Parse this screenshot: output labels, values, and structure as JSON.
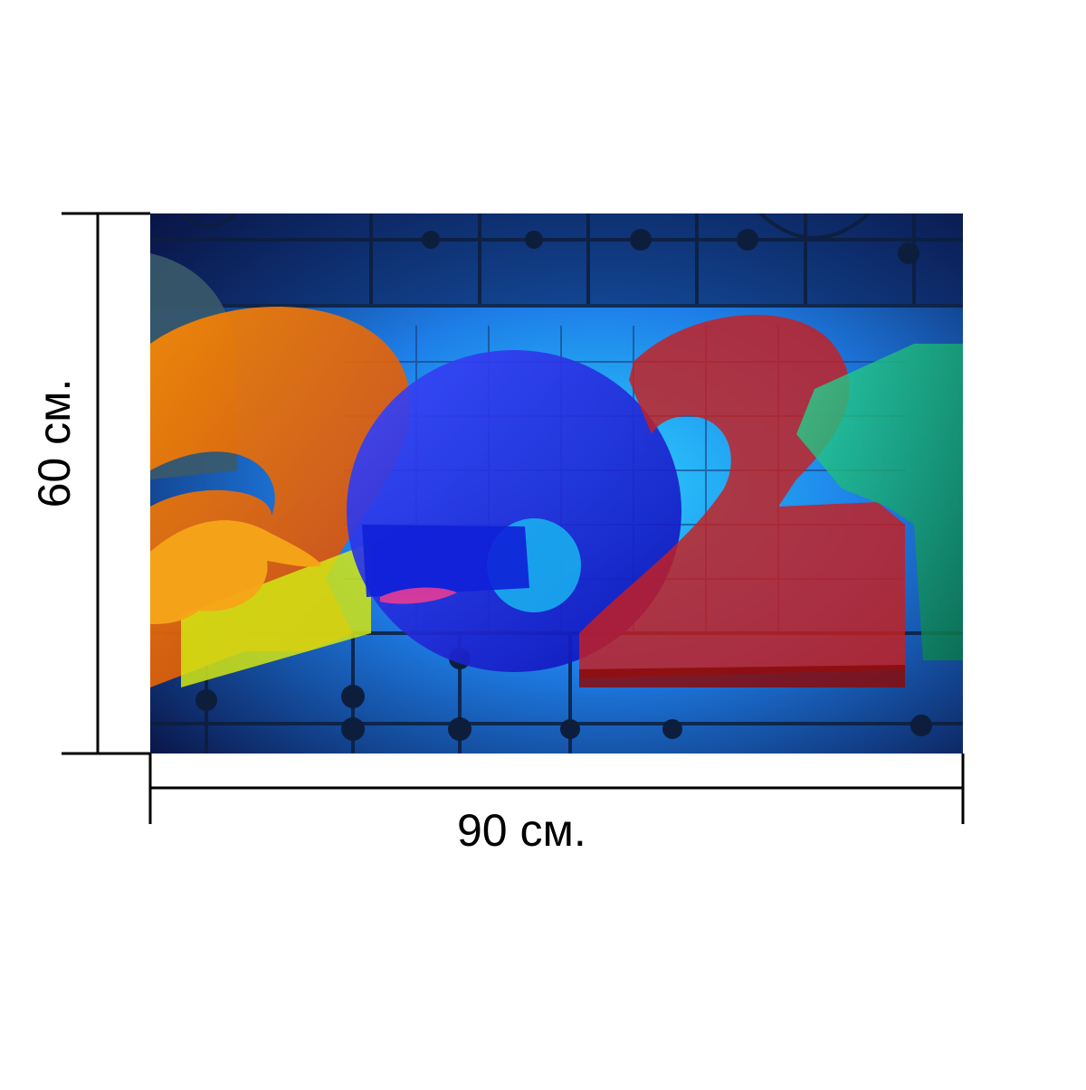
{
  "product": {
    "image": {
      "subject": "abstract-2021-numerals",
      "colors": {
        "background_dark": "#0a1446",
        "background_light": "#19b4f0",
        "orange": "#f08c14",
        "blue": "#1a2ef0",
        "red": "#c81e1e",
        "green": "#1ea050",
        "grid_line": "#0d1e3c"
      }
    },
    "dimensions": {
      "width_label": "90 см.",
      "height_label": "60 см."
    }
  }
}
